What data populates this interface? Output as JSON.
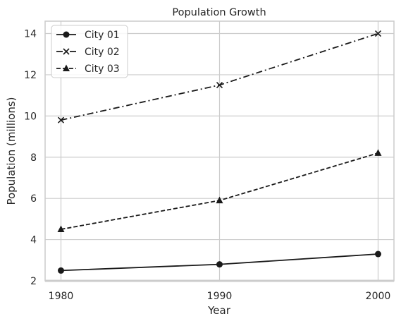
{
  "chart_data": {
    "type": "line",
    "title": "Population Growth",
    "xlabel": "Year",
    "ylabel": "Population (millions)",
    "x": [
      1980,
      1990,
      2000
    ],
    "x_ticks": [
      "1980",
      "1990",
      "2000"
    ],
    "y_ticks": [
      "2",
      "4",
      "6",
      "8",
      "10",
      "12",
      "14"
    ],
    "xlim": [
      1979,
      2001
    ],
    "ylim": [
      2,
      14.6
    ],
    "grid": true,
    "legend_position": "top-left",
    "series": [
      {
        "name": "City 01",
        "values": [
          2.5,
          2.8,
          3.3
        ],
        "marker": "circle",
        "linestyle": "solid",
        "color": "#1a1a1a"
      },
      {
        "name": "City 02",
        "values": [
          9.8,
          11.5,
          14.0
        ],
        "marker": "x",
        "linestyle": "dashdot",
        "color": "#1a1a1a"
      },
      {
        "name": "City 03",
        "values": [
          4.5,
          5.9,
          8.2
        ],
        "marker": "triangle",
        "linestyle": "dashed",
        "color": "#1a1a1a"
      }
    ]
  }
}
